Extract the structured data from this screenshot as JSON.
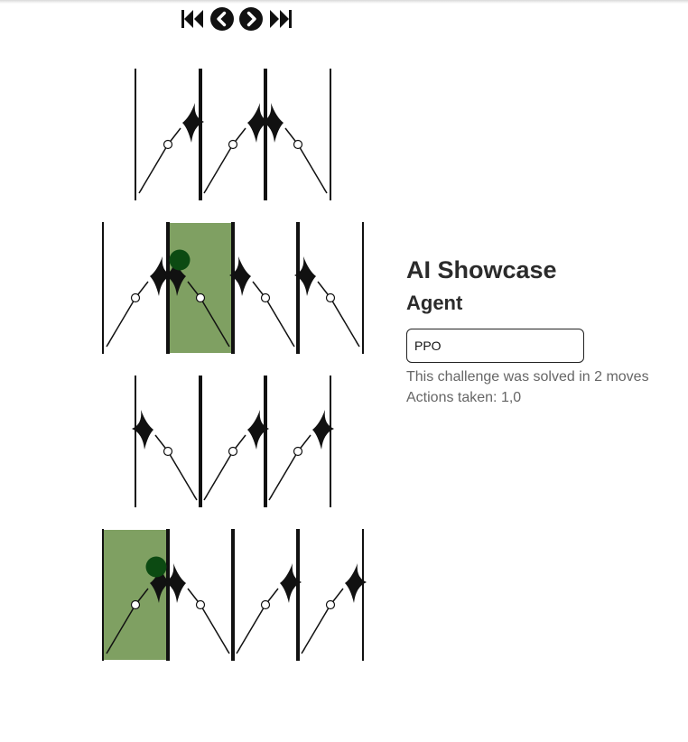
{
  "controls": {
    "icons": [
      "skip-to-start-icon",
      "previous-icon",
      "next-icon",
      "skip-to-end-icon"
    ]
  },
  "board": {
    "highlight_color": "#7fa062",
    "ball_color": "#0c4a12",
    "rows": [
      {
        "offset": 1,
        "directions": [
          "right",
          "right",
          "left"
        ],
        "highlighted": []
      },
      {
        "offset": 0,
        "directions": [
          "right",
          "left",
          "left",
          "left"
        ],
        "highlighted": [
          1
        ],
        "ball_cell": 1
      },
      {
        "offset": 1,
        "directions": [
          "left",
          "right",
          "right"
        ],
        "highlighted": []
      },
      {
        "offset": 0,
        "directions": [
          "right",
          "left",
          "right",
          "right"
        ],
        "highlighted": [
          0
        ],
        "ball_cell": 0
      }
    ]
  },
  "panel": {
    "title": "AI Showcase",
    "subtitle": "Agent",
    "agent_value": "PPO",
    "solved_text": "This challenge was solved in 2 moves",
    "actions_text": "Actions taken: 1,0"
  }
}
